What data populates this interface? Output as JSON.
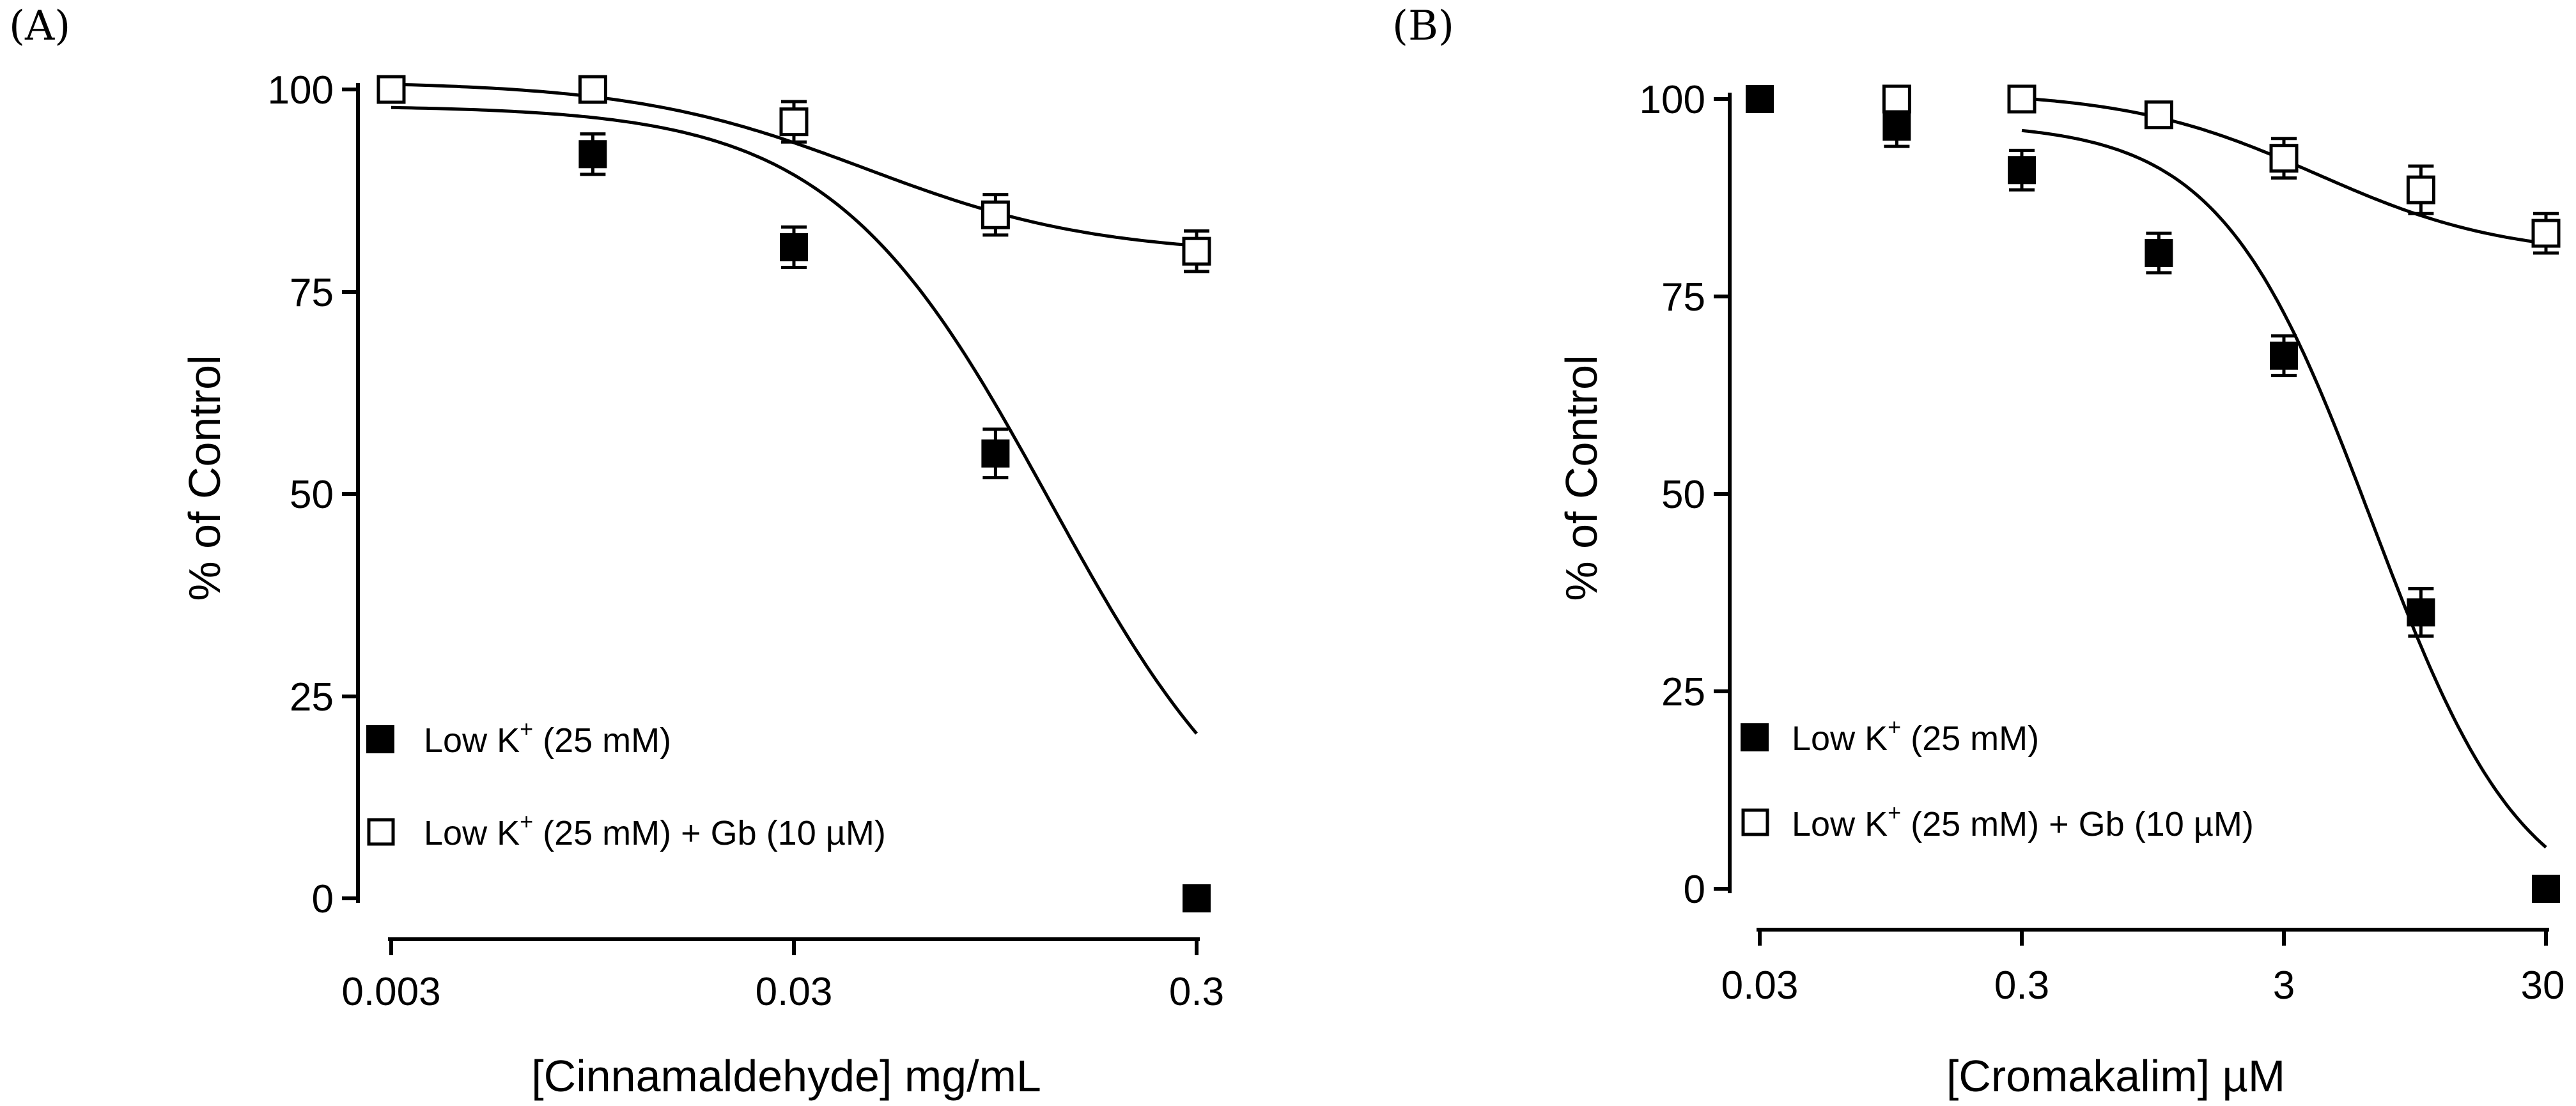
{
  "chart_data": [
    {
      "panel": "(A)",
      "type": "scatter",
      "xscale": "log",
      "xlabel": "[Cinnamaldehyde] mg/mL",
      "ylabel": "% of Control",
      "xlim": [
        0.003,
        0.3
      ],
      "ylim": [
        0,
        100
      ],
      "xticks": [
        0.003,
        0.03,
        0.3
      ],
      "xtick_labels": [
        "0.003",
        "0.03",
        "0.3"
      ],
      "yticks": [
        0,
        25,
        50,
        75,
        100
      ],
      "ytick_labels": [
        "0",
        "25",
        "50",
        "75",
        "100"
      ],
      "legend_position": "bottom-left",
      "series": [
        {
          "name": "Low K+ (25 mM)",
          "legend_main": "Low K",
          "legend_sup": "+",
          "legend_rest": " (25 mM)",
          "marker": "filled-square",
          "x": [
            0.003,
            0.0095,
            0.03,
            0.095,
            0.3
          ],
          "y": [
            100,
            92,
            80.5,
            55,
            0
          ],
          "err": [
            0,
            2.5,
            2.5,
            3,
            0
          ],
          "curve": {
            "bottom": 0,
            "top": 98,
            "ec50": 0.13,
            "hill": 1.6,
            "x_from": 0.003,
            "x_to": 0.3
          }
        },
        {
          "name": "Low K+ (25 mM) + Gb (10 µM)",
          "legend_main": "Low K",
          "legend_sup": "+",
          "legend_rest": " (25 mM) + Gb (10 µM)",
          "marker": "open-square",
          "x": [
            0.003,
            0.0095,
            0.03,
            0.095,
            0.3
          ],
          "y": [
            100,
            100,
            96,
            84.5,
            80
          ],
          "err": [
            0,
            0,
            2.5,
            2.5,
            2.5
          ],
          "curve": {
            "bottom": 79.5,
            "top": 101,
            "ec50": 0.045,
            "hill": 1.5,
            "x_from": 0.003,
            "x_to": 0.3
          }
        }
      ]
    },
    {
      "panel": "(B)",
      "type": "scatter",
      "xscale": "log",
      "xlabel": "[Cromakalim] µM",
      "ylabel": "% of Control",
      "xlim": [
        0.03,
        30
      ],
      "ylim": [
        0,
        100
      ],
      "xticks": [
        0.03,
        0.3,
        3,
        30
      ],
      "xtick_labels": [
        "0.03",
        "0.3",
        "3",
        "30"
      ],
      "yticks": [
        0,
        25,
        50,
        75,
        100
      ],
      "ytick_labels": [
        "0",
        "25",
        "50",
        "75",
        "100"
      ],
      "legend_position": "bottom-left",
      "series": [
        {
          "name": "Low K+ (25 mM)",
          "legend_main": "Low K",
          "legend_sup": "+",
          "legend_rest": " (25 mM)",
          "marker": "filled-square",
          "x": [
            0.03,
            0.1,
            0.3,
            1,
            3,
            10,
            30
          ],
          "y": [
            100,
            96.5,
            91,
            80.5,
            67.5,
            35,
            0
          ],
          "err": [
            0,
            2.5,
            2.5,
            2.5,
            2.5,
            3,
            0
          ],
          "curve": {
            "bottom": -4,
            "top": 97,
            "ec50": 6.5,
            "hill": 1.5,
            "x_from": 0.3,
            "x_to": 30
          }
        },
        {
          "name": "Low K+ (25 mM) + Gb (10 µM)",
          "legend_main": "Low K",
          "legend_sup": "+",
          "legend_rest": " (25 mM) + Gb (10 µM)",
          "marker": "open-square",
          "x": [
            0.1,
            0.3,
            1,
            3,
            10,
            30
          ],
          "y": [
            100,
            100,
            98,
            92.5,
            88.5,
            83
          ],
          "err": [
            0,
            0,
            0,
            2.5,
            3,
            2.5
          ],
          "curve": {
            "bottom": 80,
            "top": 101,
            "ec50": 4,
            "hill": 1.2,
            "x_from": 0.3,
            "x_to": 30
          }
        }
      ]
    }
  ]
}
